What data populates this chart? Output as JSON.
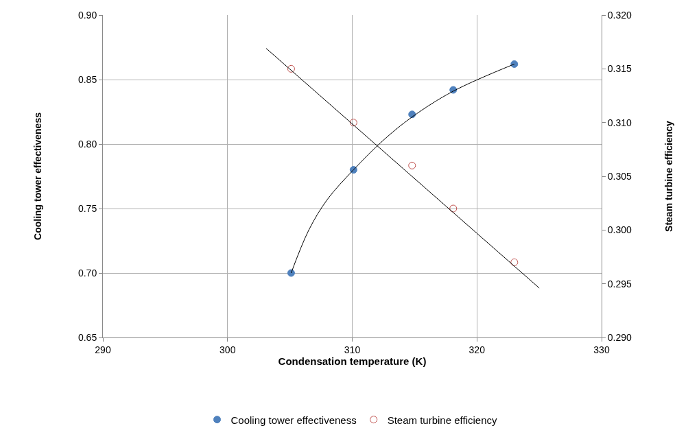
{
  "chart_data": {
    "type": "scatter",
    "xlabel": "Condensation temperature (K)",
    "ylabel": "Cooling tower effectiveness",
    "y2label": "Steam turbine efficiency",
    "series": [
      {
        "name": "Cooling tower effectiveness",
        "color": "#4f81bd",
        "marker": "circle",
        "x": [
          305.1,
          310.1,
          314.8,
          318.1,
          323.0
        ],
        "values": [
          0.7,
          0.78,
          0.823,
          0.842,
          0.862
        ]
      },
      {
        "name": "Steam turbine efficiency",
        "color": "#c0504d",
        "marker": "circle-open",
        "axis": "y2",
        "x": [
          305.1,
          310.1,
          314.8,
          318.1,
          323.0
        ],
        "values": [
          0.315,
          0.31,
          0.306,
          0.302,
          0.297
        ]
      },
      {
        "type": "line",
        "color": "#000000",
        "marker": "none",
        "x": [
          305.1,
          306.5,
          308.0,
          310.1,
          312.5,
          314.8,
          318.1,
          323.0
        ],
        "values": [
          0.7,
          0.733,
          0.757,
          0.78,
          0.803,
          0.821,
          0.841,
          0.862
        ]
      },
      {
        "type": "line",
        "color": "#000000",
        "marker": "none",
        "axis": "y2",
        "x": [
          303.1,
          325.0
        ],
        "values": [
          0.3169,
          0.2946
        ]
      }
    ],
    "xlim": [
      290,
      330
    ],
    "xticks": [
      290,
      300,
      310,
      320,
      330
    ],
    "ylim": [
      0.65,
      0.9
    ],
    "yticks": [
      {
        "value": 0.65,
        "label": "0.65"
      },
      {
        "value": 0.7,
        "label": "0.70"
      },
      {
        "value": 0.75,
        "label": "0.75"
      },
      {
        "value": 0.8,
        "label": "0.80"
      },
      {
        "value": 0.85,
        "label": "0.85"
      },
      {
        "value": 0.9,
        "label": "0.90"
      }
    ],
    "y2lim": [
      0.29,
      0.32
    ],
    "y2ticks": [
      {
        "value": 0.29,
        "label": "0.290"
      },
      {
        "value": 0.295,
        "label": "0.295"
      },
      {
        "value": 0.3,
        "label": "0.300"
      },
      {
        "value": 0.305,
        "label": "0.305"
      },
      {
        "value": 0.31,
        "label": "0.310"
      },
      {
        "value": 0.315,
        "label": "0.315"
      },
      {
        "value": 0.32,
        "label": "0.320"
      }
    ],
    "grid": true,
    "legend": "bottom"
  }
}
